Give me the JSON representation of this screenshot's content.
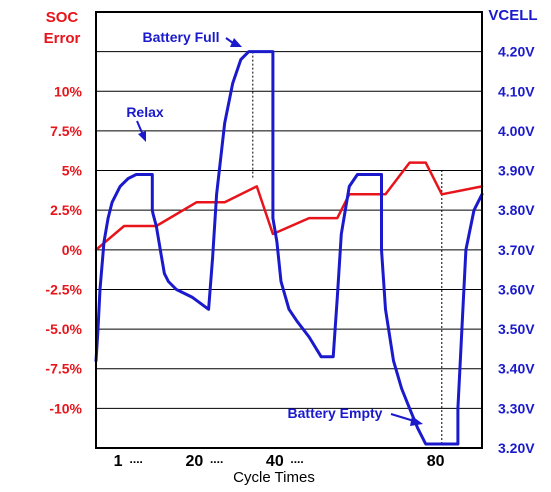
{
  "chart_data": {
    "type": "line",
    "title": "",
    "xlabel": "Cycle Times",
    "ylabel_left": "SOC Error",
    "ylabel_left_lines": [
      "SOC",
      "Error"
    ],
    "ylabel_right": "VCELL",
    "x_tick_labels": [
      "1",
      "....",
      "20",
      "....",
      "40",
      "....",
      "80"
    ],
    "x_tick_positions": [
      1,
      10,
      20,
      30,
      40,
      50,
      80
    ],
    "left_axis": {
      "ticks": [
        10,
        7.5,
        5,
        2.5,
        0,
        -2.5,
        -5.0,
        -7.5,
        -10
      ],
      "tick_labels": [
        "10%",
        "7.5%",
        "5%",
        "2.5%",
        "0%",
        "-2.5%",
        "-5.0%",
        "-7.5%",
        "-10%"
      ],
      "ylim": [
        -12.5,
        15
      ]
    },
    "right_axis": {
      "ticks": [
        4.2,
        4.1,
        4.0,
        3.9,
        3.8,
        3.7,
        3.6,
        3.5,
        3.4,
        3.3,
        3.2
      ],
      "tick_labels": [
        "4.20V",
        "4.10V",
        "4.00V",
        "3.90V",
        "3.80V",
        "3.70V",
        "3.60V",
        "3.50V",
        "3.40V",
        "3.30V",
        "3.20V"
      ],
      "ylim": [
        3.2,
        4.3
      ]
    },
    "grid": true,
    "series": [
      {
        "name": "SOC Error",
        "axis": "left",
        "color": "#e8141b",
        "x": [
          0,
          7,
          15,
          25,
          32,
          40,
          44,
          53,
          60,
          63,
          72,
          78,
          82,
          86,
          96
        ],
        "y": [
          0,
          1.5,
          1.5,
          3.0,
          3.0,
          4.0,
          1.0,
          2.0,
          2.0,
          3.5,
          3.5,
          5.5,
          5.5,
          3.5,
          4.0
        ]
      },
      {
        "name": "VCELL",
        "axis": "right",
        "color": "#1a1acc",
        "x": [
          0,
          0.5,
          1,
          2,
          3,
          4,
          6,
          8,
          10,
          12,
          14,
          14,
          14.2,
          15,
          16,
          17,
          18,
          20,
          24,
          28,
          28,
          29,
          30,
          32,
          34,
          36,
          38,
          40,
          43,
          44,
          44,
          44,
          45,
          46,
          48,
          50,
          53,
          56,
          59,
          59,
          60,
          61,
          63,
          65,
          67,
          68,
          70,
          71,
          71,
          71,
          72,
          74,
          76,
          78,
          80,
          82,
          84,
          85,
          86,
          87,
          90,
          90,
          90,
          91,
          92,
          94,
          96
        ],
        "y": [
          3.42,
          3.5,
          3.6,
          3.72,
          3.78,
          3.82,
          3.86,
          3.88,
          3.89,
          3.89,
          3.89,
          3.8,
          3.79,
          3.76,
          3.7,
          3.64,
          3.62,
          3.6,
          3.58,
          3.55,
          3.55,
          3.68,
          3.84,
          4.02,
          4.12,
          4.18,
          4.2,
          4.2,
          4.2,
          4.2,
          3.8,
          3.78,
          3.72,
          3.62,
          3.55,
          3.52,
          3.48,
          3.43,
          3.43,
          3.43,
          3.58,
          3.74,
          3.86,
          3.89,
          3.89,
          3.89,
          3.89,
          3.89,
          3.75,
          3.7,
          3.55,
          3.42,
          3.35,
          3.3,
          3.25,
          3.21,
          3.21,
          3.21,
          3.21,
          3.21,
          3.21,
          3.21,
          3.3,
          3.5,
          3.7,
          3.8,
          3.84
        ]
      }
    ],
    "annotations": [
      {
        "text": "Relax",
        "x": 8,
        "y_right": 3.89
      },
      {
        "text": "Battery Full",
        "x": 37,
        "y_right": 4.2
      },
      {
        "text": "Battery Empty",
        "x": 84,
        "y_right": 3.21
      }
    ],
    "markers": [
      {
        "x": 39,
        "from_right": 4.2,
        "to_right": 3.88
      },
      {
        "x": 86,
        "from_right": 3.21,
        "to_right": 3.9
      }
    ]
  }
}
